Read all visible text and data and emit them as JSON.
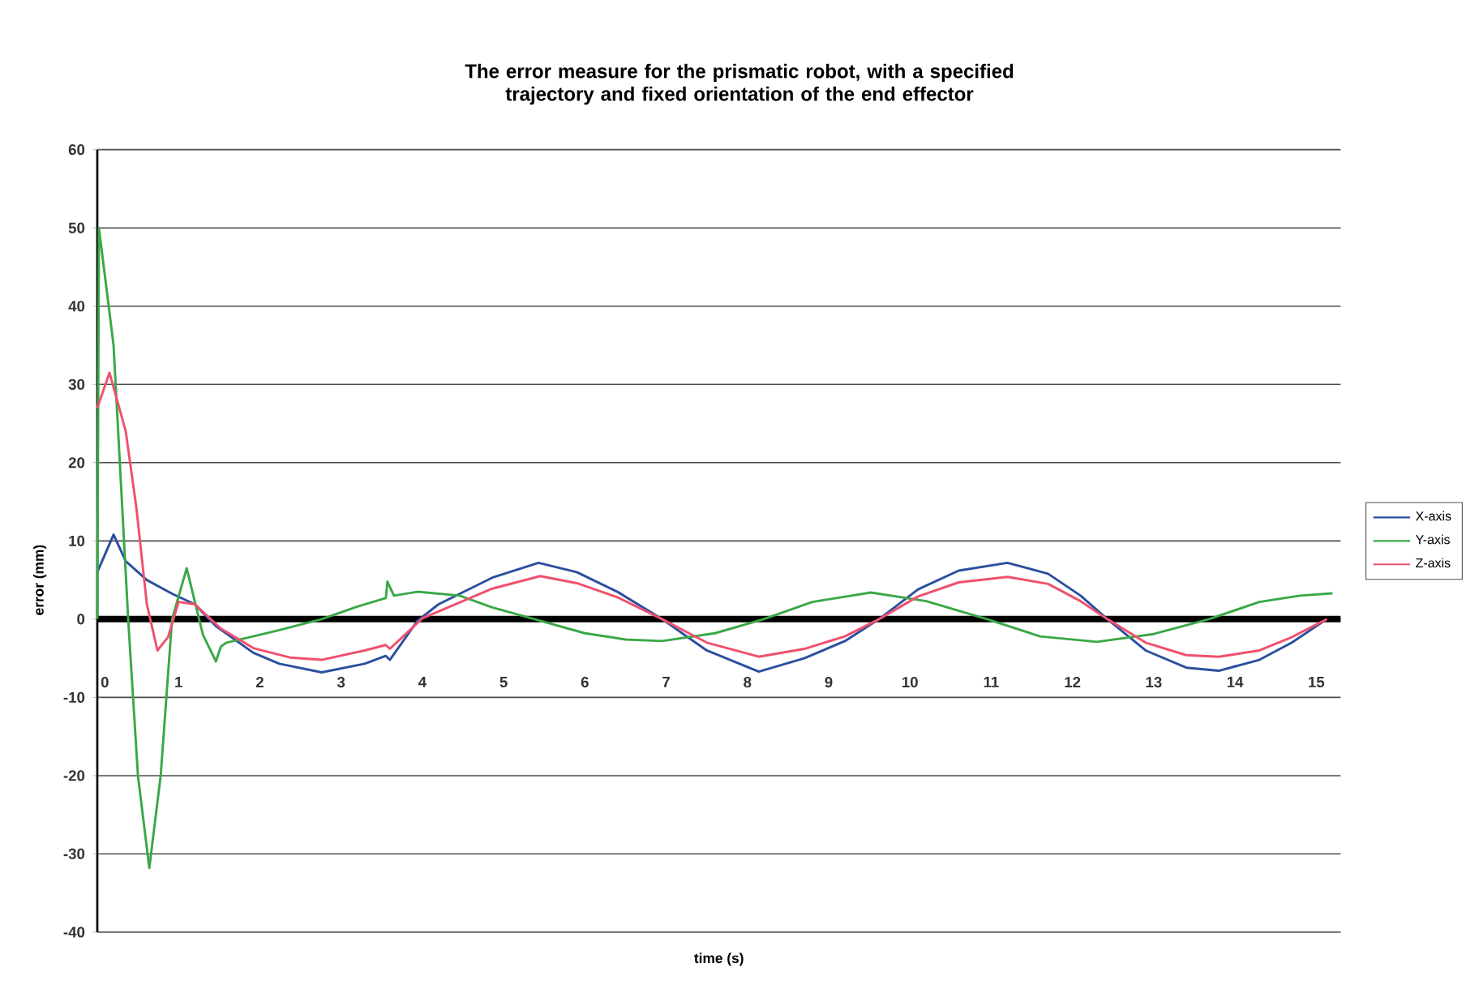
{
  "chart_data": {
    "type": "line",
    "title": "The error measure for the prismatic robot, with a specified trajectory and fixed orientation of the end effector",
    "xlabel": "time (s)",
    "ylabel": "error (mm)",
    "xlim": [
      0,
      15.3
    ],
    "xticks": [
      0,
      1,
      2,
      3,
      4,
      5,
      6,
      7,
      8,
      9,
      10,
      11,
      12,
      13,
      14,
      15
    ],
    "ylim": [
      -40,
      60
    ],
    "yticks": [
      -40,
      -30,
      -20,
      -10,
      0,
      10,
      20,
      30,
      40,
      50,
      60
    ],
    "grid": "y",
    "legend": "right",
    "series": [
      {
        "name": "X-axis",
        "color": "#2a4f9e",
        "x": [
          0,
          0.2,
          0.35,
          0.61,
          0.93,
          1.2,
          1.46,
          1.92,
          2.24,
          2.76,
          3.29,
          3.55,
          3.6,
          3.94,
          4.2,
          4.86,
          5.43,
          5.9,
          6.4,
          6.95,
          7.5,
          8.14,
          8.7,
          9.2,
          9.62,
          10.1,
          10.6,
          11.2,
          11.7,
          12.1,
          12.43,
          12.9,
          13.4,
          13.8,
          14.3,
          14.7,
          15.13
        ],
        "values": [
          6,
          10.8,
          7.4,
          5,
          3.2,
          1.9,
          -0.9,
          -4.3,
          -5.7,
          -6.8,
          -5.7,
          -4.7,
          -5.2,
          -0.2,
          1.9,
          5.3,
          7.2,
          6,
          3.5,
          0,
          -4,
          -6.7,
          -5,
          -2.8,
          0,
          3.8,
          6.2,
          7.2,
          5.8,
          3,
          0,
          -4,
          -6.2,
          -6.6,
          -5.2,
          -3,
          0
        ]
      },
      {
        "name": "Y-axis",
        "color": "#3aa846",
        "x": [
          0,
          0.02,
          0.2,
          0.38,
          0.5,
          0.64,
          0.78,
          0.92,
          1.1,
          1.3,
          1.46,
          1.52,
          1.59,
          2.2,
          2.76,
          3.2,
          3.55,
          3.57,
          3.65,
          3.94,
          4.46,
          4.86,
          5.38,
          6.0,
          6.5,
          6.95,
          7.6,
          8.2,
          8.8,
          9.52,
          10.2,
          10.95,
          11.6,
          12.3,
          13.0,
          13.68,
          14.3,
          14.8,
          15.2
        ],
        "values": [
          0,
          50,
          35,
          0,
          -20,
          -31.8,
          -20,
          0,
          6.5,
          -2,
          -5.4,
          -3.5,
          -3,
          -1.5,
          0,
          1.6,
          2.7,
          4.8,
          3,
          3.5,
          3,
          1.5,
          0,
          -1.8,
          -2.6,
          -2.8,
          -1.8,
          0,
          2.2,
          3.4,
          2.3,
          0,
          -2.2,
          -2.9,
          -1.9,
          0,
          2.2,
          3,
          3.3
        ]
      },
      {
        "name": "Z-axis",
        "color": "#f0506e",
        "x": [
          0,
          0.15,
          0.35,
          0.48,
          0.61,
          0.74,
          0.87,
          1.0,
          1.2,
          1.52,
          1.92,
          2.37,
          2.76,
          3.29,
          3.55,
          3.6,
          4.0,
          4.86,
          5.45,
          5.9,
          6.4,
          6.95,
          7.5,
          8.14,
          8.7,
          9.2,
          9.62,
          10.1,
          10.6,
          11.2,
          11.7,
          12.1,
          12.43,
          12.9,
          13.4,
          13.8,
          14.3,
          14.7,
          15.13
        ],
        "values": [
          27,
          31.5,
          24,
          14.3,
          1.9,
          -4,
          -2.3,
          2.2,
          1.9,
          -1.2,
          -3.7,
          -4.9,
          -5.2,
          -4,
          -3.3,
          -3.8,
          0.1,
          3.9,
          5.5,
          4.6,
          2.8,
          0,
          -3,
          -4.8,
          -3.8,
          -2.2,
          0,
          2.9,
          4.7,
          5.4,
          4.5,
          2.3,
          0,
          -3,
          -4.6,
          -4.8,
          -4,
          -2.3,
          0
        ]
      }
    ]
  }
}
